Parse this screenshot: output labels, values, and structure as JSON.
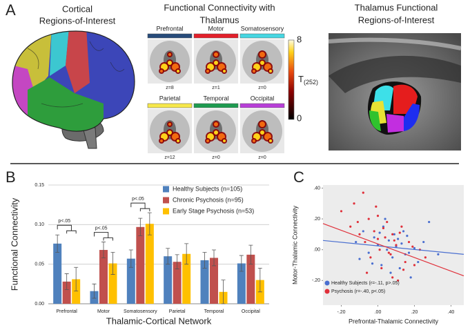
{
  "panel_a": {
    "label": "A",
    "cortical_title": [
      "Cortical",
      "Regions-of-Interest"
    ],
    "connectivity_title": [
      "Functional Connectivity with",
      "Thalamus"
    ],
    "thalamus_title": [
      "Thalamus Functional",
      "Regions-of-Interest"
    ],
    "networks": [
      {
        "name": "Prefrontal",
        "color": "#274b7a",
        "slice": "z=8"
      },
      {
        "name": "Motor",
        "color": "#e3202b",
        "slice": "z=1"
      },
      {
        "name": "Somatosensory",
        "color": "#45d6e2",
        "slice": "z=0"
      },
      {
        "name": "Parietal",
        "color": "#f6e84b",
        "slice": "z=12"
      },
      {
        "name": "Temporal",
        "color": "#1e9b50",
        "slice": "z=0"
      },
      {
        "name": "Occipital",
        "color": "#b83fd8",
        "slice": "z=0"
      }
    ],
    "colorbar": {
      "max": 8,
      "min": 0,
      "label": "T",
      "subscript": "(252)"
    }
  },
  "chart_data": [
    {
      "type": "bar",
      "panel_label": "B",
      "y_label": "Functional Connectivity",
      "x_label": "Thalamic-Cortical Network",
      "categories": [
        "Prefrontal",
        "Motor",
        "Somatosensory",
        "Parietal",
        "Temporal",
        "Occipital"
      ],
      "series": [
        {
          "name": "Healthy Subjects (n=105)",
          "color": "#4f81bd",
          "values": [
            0.076,
            0.016,
            0.057,
            0.06,
            0.055,
            0.051
          ],
          "errors": [
            0.011,
            0.009,
            0.011,
            0.01,
            0.01,
            0.01
          ]
        },
        {
          "name": "Chronic Psychosis (n=95)",
          "color": "#c0504d",
          "values": [
            0.028,
            0.068,
            0.097,
            0.053,
            0.058,
            0.062
          ],
          "errors": [
            0.01,
            0.01,
            0.011,
            0.009,
            0.01,
            0.012
          ]
        },
        {
          "name": "Early Stage Psychosis (n=53)",
          "color": "#ffc000",
          "values": [
            0.031,
            0.051,
            0.101,
            0.063,
            0.015,
            0.03
          ],
          "errors": [
            0.015,
            0.014,
            0.014,
            0.013,
            0.015,
            0.015
          ]
        }
      ],
      "annotations": [
        "p<.05",
        "p<.05",
        "p<.05"
      ],
      "ylim": [
        0,
        0.15
      ],
      "yticks": [
        {
          "value": 0,
          "label": "0.00"
        },
        0.05,
        {
          "value": 0.1,
          "label": "0.10"
        },
        0.15
      ],
      "grid": true,
      "legend": "upper right"
    },
    {
      "type": "scatter",
      "panel_label": "C",
      "y_label": "Motor-Thalamic Connectivity",
      "x_label": "Prefrontal-Thalamic Connectivity",
      "series": [
        {
          "name": "Healthy Subjects (r=-.11, p>.05)",
          "color": "#4a6fd0",
          "x": [
            -0.12,
            -0.08,
            -0.05,
            -0.02,
            0.0,
            0.02,
            0.03,
            0.05,
            0.06,
            0.08,
            0.09,
            0.1,
            0.12,
            0.13,
            0.15,
            0.16,
            0.18,
            0.2,
            0.22,
            0.25,
            0.28,
            0.33,
            -0.1,
            0.04,
            0.07,
            0.11,
            0.14,
            0.17,
            0.01,
            -0.03
          ],
          "values": [
            0.05,
            0.12,
            -0.02,
            0.08,
            0.03,
            -0.1,
            0.15,
            0.0,
            0.06,
            -0.05,
            0.1,
            0.02,
            -0.12,
            0.04,
            -0.03,
            0.09,
            -0.18,
            0.01,
            -0.08,
            0.05,
            0.18,
            -0.03,
            -0.06,
            0.2,
            -0.15,
            0.07,
            0.12,
            -0.02,
            0.11,
            -0.09
          ],
          "fit": {
            "x": [
              -0.3,
              0.47
            ],
            "y": [
              0.06,
              -0.03
            ]
          }
        },
        {
          "name": "Psychosis (r=-.40, p<.05)",
          "color": "#e0303a",
          "x": [
            -0.2,
            -0.15,
            -0.13,
            -0.1,
            -0.08,
            -0.07,
            -0.05,
            -0.04,
            -0.02,
            0.0,
            0.01,
            0.02,
            0.04,
            0.05,
            0.07,
            0.08,
            0.1,
            0.11,
            0.13,
            0.15,
            0.17,
            0.2,
            0.23,
            0.26,
            -0.06,
            -0.01,
            0.03,
            0.06,
            0.09,
            0.12,
            0.14,
            0.19,
            -0.11,
            0.0,
            0.08
          ],
          "values": [
            0.25,
            0.15,
            0.3,
            0.1,
            0.37,
            0.05,
            0.2,
            -0.05,
            0.12,
            0.22,
            0.0,
            -0.12,
            0.08,
            0.18,
            -0.03,
            0.1,
            0.03,
            -0.2,
            0.15,
            -0.08,
            0.05,
            -0.1,
            0.0,
            -0.05,
            -0.15,
            0.28,
            0.14,
            -0.02,
            0.06,
            0.11,
            -0.13,
            0.02,
            0.18,
            0.07,
            -0.18
          ],
          "fit": {
            "x": [
              -0.3,
              0.47
            ],
            "y": [
              0.17,
              -0.17
            ]
          }
        }
      ],
      "xlim": [
        -0.3,
        0.47
      ],
      "ylim": [
        -0.36,
        0.42
      ],
      "xticks": [
        {
          "value": -0.2,
          "label": "-.20"
        },
        {
          "value": 0,
          "label": ".00"
        },
        {
          "value": 0.2,
          "label": ".20"
        },
        {
          "value": 0.4,
          "label": ".40"
        }
      ],
      "yticks": [
        {
          "value": -0.2,
          "label": "-.20"
        },
        {
          "value": 0,
          "label": ".00"
        },
        {
          "value": 0.2,
          "label": ".20"
        },
        {
          "value": 0.4,
          "label": ".40"
        }
      ],
      "grid": false,
      "legend": "lower left"
    }
  ]
}
